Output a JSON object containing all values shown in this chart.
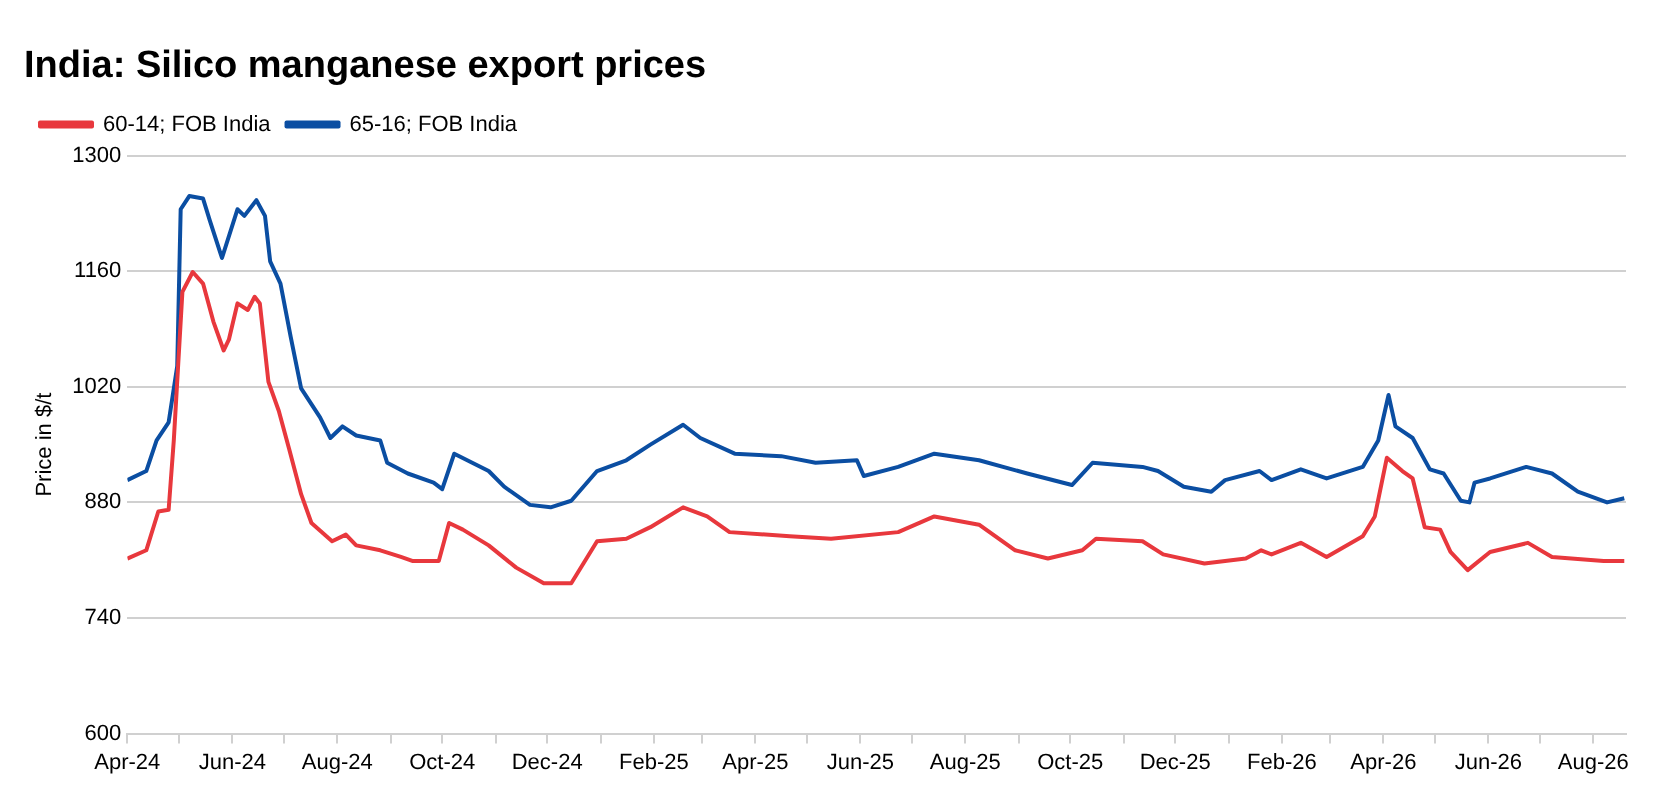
{
  "chart_data": {
    "type": "line",
    "title": "India: Silico manganese export prices",
    "ylabel": "Price in $/t",
    "xlim": [
      "2024-04-01",
      "2026-08-20"
    ],
    "xticks": [
      {
        "value": "2024-04-01",
        "label": "Apr-24"
      },
      {
        "value": "2024-05-01",
        "label": null
      },
      {
        "value": "2024-06-01",
        "label": "Jun-24"
      },
      {
        "value": "2024-07-01",
        "label": null
      },
      {
        "value": "2024-08-01",
        "label": "Aug-24"
      },
      {
        "value": "2024-09-01",
        "label": null
      },
      {
        "value": "2024-10-01",
        "label": "Oct-24"
      },
      {
        "value": "2024-11-01",
        "label": null
      },
      {
        "value": "2024-12-01",
        "label": "Dec-24"
      },
      {
        "value": "2025-01-01",
        "label": null
      },
      {
        "value": "2025-02-01",
        "label": "Feb-25"
      },
      {
        "value": "2025-03-01",
        "label": null
      },
      {
        "value": "2025-04-01",
        "label": "Apr-25"
      },
      {
        "value": "2025-05-01",
        "label": null
      },
      {
        "value": "2025-06-01",
        "label": "Jun-25"
      },
      {
        "value": "2025-07-01",
        "label": null
      },
      {
        "value": "2025-08-01",
        "label": "Aug-25"
      },
      {
        "value": "2025-09-01",
        "label": null
      },
      {
        "value": "2025-10-01",
        "label": "Oct-25"
      },
      {
        "value": "2025-11-01",
        "label": null
      },
      {
        "value": "2025-12-01",
        "label": "Dec-25"
      },
      {
        "value": "2026-01-01",
        "label": null
      },
      {
        "value": "2026-02-01",
        "label": "Feb-26"
      },
      {
        "value": "2026-03-01",
        "label": null
      },
      {
        "value": "2026-04-01",
        "label": "Apr-26"
      },
      {
        "value": "2026-05-01",
        "label": null
      },
      {
        "value": "2026-06-01",
        "label": "Jun-26"
      },
      {
        "value": "2026-07-01",
        "label": null
      },
      {
        "value": "2026-08-01",
        "label": "Aug-26"
      }
    ],
    "ylim": [
      600,
      1300
    ],
    "yticks": [
      600,
      740,
      880,
      1020,
      1160,
      1300
    ],
    "grid": "y",
    "legend": "top left",
    "marker": "none",
    "line_style": "solid",
    "series": [
      {
        "name": "60-14; FOB India",
        "color": "#e8383d",
        "x": [
          "2024-04-01",
          "2024-04-12",
          "2024-04-19",
          "2024-04-25",
          "2024-04-28",
          "2024-05-03",
          "2024-05-09",
          "2024-05-15",
          "2024-05-21",
          "2024-05-27",
          "2024-05-30",
          "2024-06-04",
          "2024-06-10",
          "2024-06-14",
          "2024-06-17",
          "2024-06-22",
          "2024-06-28",
          "2024-07-04",
          "2024-07-11",
          "2024-07-17",
          "2024-07-29",
          "2024-08-06",
          "2024-08-12",
          "2024-08-26",
          "2024-09-07",
          "2024-09-14",
          "2024-09-29",
          "2024-10-05",
          "2024-10-13",
          "2024-10-28",
          "2024-11-13",
          "2024-11-29",
          "2024-12-15",
          "2024-12-30",
          "2025-01-16",
          "2025-01-30",
          "2025-02-18",
          "2025-03-04",
          "2025-03-17",
          "2025-04-21",
          "2025-05-15",
          "2025-06-23",
          "2025-07-14",
          "2025-08-09",
          "2025-08-30",
          "2025-09-18",
          "2025-10-08",
          "2025-10-16",
          "2025-11-12",
          "2025-11-24",
          "2025-12-18",
          "2026-01-11",
          "2026-01-20",
          "2026-01-26",
          "2026-02-12",
          "2026-02-27",
          "2026-03-20",
          "2026-03-27",
          "2026-04-03",
          "2026-04-12",
          "2026-04-18",
          "2026-04-25",
          "2026-05-04",
          "2026-05-10",
          "2026-05-20",
          "2026-06-02",
          "2026-06-24",
          "2026-07-08",
          "2026-08-07",
          "2026-08-19"
        ],
        "values": [
          812,
          822,
          869,
          871,
          955,
          1135,
          1159,
          1145,
          1099,
          1064,
          1077,
          1121,
          1113,
          1129,
          1121,
          1026,
          991,
          945,
          890,
          855,
          833,
          841,
          828,
          822,
          814,
          809,
          809,
          855,
          847,
          828,
          801,
          782,
          782,
          833,
          836,
          850,
          874,
          863,
          844,
          839,
          836,
          844,
          863,
          853,
          822,
          812,
          822,
          836,
          833,
          817,
          806,
          812,
          822,
          817,
          831,
          814,
          839,
          863,
          934,
          918,
          909,
          850,
          847,
          820,
          798,
          820,
          831,
          814,
          809,
          809
        ]
      },
      {
        "name": "65-16; FOB India",
        "color": "#0b4ea2",
        "x": [
          "2024-04-01",
          "2024-04-12",
          "2024-04-18",
          "2024-04-25",
          "2024-04-30",
          "2024-05-02",
          "2024-05-07",
          "2024-05-15",
          "2024-05-19",
          "2024-05-26",
          "2024-06-04",
          "2024-06-08",
          "2024-06-15",
          "2024-06-20",
          "2024-06-23",
          "2024-06-29",
          "2024-07-05",
          "2024-07-11",
          "2024-07-22",
          "2024-07-28",
          "2024-08-04",
          "2024-08-12",
          "2024-08-26",
          "2024-08-30",
          "2024-09-11",
          "2024-09-26",
          "2024-10-01",
          "2024-10-08",
          "2024-10-28",
          "2024-11-06",
          "2024-11-21",
          "2024-12-03",
          "2024-12-15",
          "2024-12-30",
          "2025-01-16",
          "2025-01-30",
          "2025-02-18",
          "2025-02-28",
          "2025-03-20",
          "2025-04-16",
          "2025-05-06",
          "2025-05-30",
          "2025-06-03",
          "2025-06-23",
          "2025-07-14",
          "2025-08-09",
          "2025-09-06",
          "2025-10-02",
          "2025-10-14",
          "2025-11-12",
          "2025-11-21",
          "2025-12-06",
          "2025-12-22",
          "2025-12-30",
          "2026-01-19",
          "2026-01-26",
          "2026-02-12",
          "2026-02-27",
          "2026-03-20",
          "2026-03-29",
          "2026-04-04",
          "2026-04-08",
          "2026-04-18",
          "2026-04-28",
          "2026-05-06",
          "2026-05-16",
          "2026-05-21",
          "2026-05-24",
          "2026-06-02",
          "2026-06-23",
          "2026-07-08",
          "2026-07-23",
          "2026-08-09",
          "2026-08-19"
        ],
        "values": [
          907,
          918,
          955,
          977,
          1045,
          1235,
          1251,
          1248,
          1221,
          1176,
          1235,
          1227,
          1246,
          1227,
          1172,
          1145,
          1080,
          1018,
          983,
          958,
          972,
          961,
          955,
          928,
          915,
          904,
          896,
          939,
          918,
          899,
          877,
          874,
          882,
          918,
          931,
          950,
          974,
          958,
          939,
          936,
          928,
          931,
          912,
          923,
          939,
          931,
          915,
          901,
          928,
          923,
          918,
          899,
          893,
          907,
          918,
          907,
          920,
          909,
          923,
          955,
          1010,
          972,
          958,
          920,
          915,
          882,
          880,
          904,
          909,
          923,
          915,
          893,
          880,
          885
        ]
      }
    ]
  }
}
